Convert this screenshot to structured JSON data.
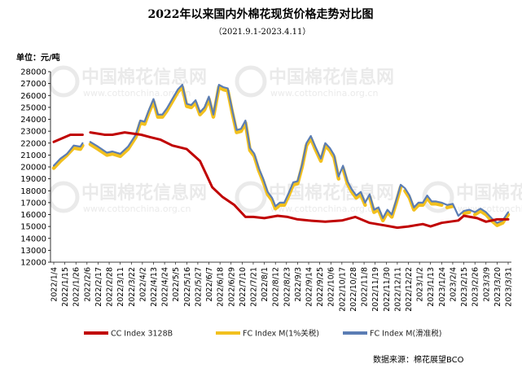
{
  "chart_data": {
    "type": "line",
    "title": "2022年以来国内外棉花现货价格走势对比图",
    "subtitle": "（2021.9.1-2023.4.11）",
    "ylabel": "单位：元/吨",
    "ylim": [
      12000,
      28000
    ],
    "ystep": 1000,
    "grid": false,
    "legend_position": "bottom",
    "source": "数据来源：棉花展望BCO",
    "watermark": {
      "cn": "中国棉花信息网",
      "en": "www.cottonchina.org.cn"
    },
    "x_labels": [
      "2022/1/4",
      "2022/1/15",
      "2022/1/26",
      "2022/2/6",
      "2022/2/17",
      "2022/2/28",
      "2022/3/11",
      "2022/3/22",
      "2022/4/2",
      "2022/4/13",
      "2022/4/24",
      "2022/5/5",
      "2022/5/16",
      "2022/5/27",
      "2022/6/7",
      "2022/6/18",
      "2022/6/29",
      "2022/7/10",
      "2022/7/21",
      "2022/8/1",
      "2022/8/12",
      "2022/8/23",
      "2022/9/3",
      "2022/9/14",
      "2022/9/25",
      "2022/10/6",
      "2022/10/17",
      "2022/10/28",
      "2022/11/8",
      "2022/11/19",
      "2022/11/30",
      "2022/12/11",
      "2022/12/22",
      "2023/1/2",
      "2023/1/13",
      "2023/1/24",
      "2023/2/4",
      "2023/2/15",
      "2023/2/26",
      "2023/3/9",
      "2023/3/20",
      "2023/3/31"
    ],
    "series": [
      {
        "name": "CC Index 3128B",
        "color": "#c00000",
        "x": [
          0,
          1.5,
          2.6,
          3.0,
          3.3,
          4.6,
          5.3,
          6.4,
          7.9,
          8.7,
          9.6,
          10.7,
          12.0,
          13.2,
          14.3,
          15.2,
          16.3,
          17.3,
          18.0,
          19.0,
          20.2,
          21.1,
          22.0,
          23.0,
          24.5,
          26.0,
          27.2,
          28.5,
          29.8,
          31.0,
          32.0,
          33.3,
          34.0,
          35.0,
          36.5,
          37.0,
          38.2,
          39.0,
          40.0,
          41.0
        ],
        "values": [
          22100,
          22700,
          22700,
          null,
          22900,
          22700,
          22700,
          22900,
          22700,
          22500,
          22300,
          21800,
          21500,
          20500,
          18300,
          17500,
          16800,
          15800,
          15800,
          15700,
          15900,
          15800,
          15600,
          15500,
          15400,
          15500,
          15800,
          15300,
          15100,
          14900,
          15000,
          15200,
          15000,
          15300,
          15500,
          15900,
          15700,
          15400,
          15600,
          15600
        ],
        "break_after_index": 2
      },
      {
        "name": "FC Index M(1%关税)",
        "color": "#f2c01e",
        "x": [
          0,
          0.6,
          1.2,
          1.8,
          2.4,
          2.6,
          null,
          3.3,
          4.0,
          4.8,
          5.3,
          6.0,
          6.7,
          7.4,
          7.8,
          8.2,
          8.6,
          9.0,
          9.4,
          9.8,
          10.2,
          10.7,
          11.2,
          11.6,
          12.0,
          12.4,
          12.8,
          13.2,
          13.6,
          14.0,
          14.4,
          14.9,
          15.3,
          15.7,
          16.1,
          16.5,
          16.9,
          17.3,
          17.7,
          18.1,
          18.5,
          18.9,
          19.3,
          19.7,
          20.0,
          20.4,
          20.8,
          21.2,
          21.6,
          22.0,
          22.4,
          22.8,
          23.2,
          23.6,
          24.1,
          24.5,
          24.9,
          25.3,
          25.7,
          26.1,
          26.5,
          26.9,
          27.3,
          27.7,
          28.1,
          28.5,
          28.9,
          29.3,
          29.7,
          30.1,
          30.5,
          30.9,
          31.3,
          31.7,
          32.1,
          32.5,
          32.9,
          33.3,
          33.7,
          34.1,
          34.5,
          35.0,
          35.5,
          36.0,
          36.5,
          37.0,
          37.5,
          38.0,
          38.5,
          39.0,
          39.5,
          40.0,
          40.5,
          41.0
        ],
        "values": [
          19900,
          20500,
          21000,
          21600,
          21500,
          21800,
          null,
          21900,
          21500,
          21000,
          21100,
          20900,
          21500,
          22500,
          23700,
          23600,
          24600,
          25500,
          24200,
          24200,
          24700,
          25500,
          26300,
          26700,
          25100,
          25000,
          25400,
          24400,
          24800,
          25700,
          24200,
          26700,
          26500,
          26400,
          24600,
          22900,
          23000,
          23700,
          21400,
          20900,
          19700,
          18800,
          17700,
          17200,
          16500,
          16800,
          16800,
          17600,
          18500,
          18600,
          20000,
          21800,
          22400,
          21500,
          20500,
          21800,
          21400,
          20800,
          19000,
          19900,
          18600,
          17900,
          17400,
          17700,
          16800,
          17500,
          16200,
          16400,
          15500,
          16200,
          15800,
          17000,
          18300,
          18000,
          17400,
          16400,
          16800,
          16800,
          17400,
          16900,
          16900,
          16800,
          16600,
          16700,
          15700,
          16100,
          16200,
          16000,
          16300,
          16000,
          15500,
          15100,
          15300,
          16000
        ],
        "gaps_at_x": [
          26.0,
          28.3,
          31.5,
          35.1,
          36.3,
          36.6,
          37.8
        ]
      },
      {
        "name": "FC Index M(滑准税)",
        "color": "#5b7db4",
        "x": [
          0,
          0.6,
          1.2,
          1.8,
          2.4,
          2.6,
          null,
          3.3,
          4.0,
          4.8,
          5.3,
          6.0,
          6.7,
          7.4,
          7.8,
          8.2,
          8.6,
          9.0,
          9.4,
          9.8,
          10.2,
          10.7,
          11.2,
          11.6,
          12.0,
          12.4,
          12.8,
          13.2,
          13.6,
          14.0,
          14.4,
          14.9,
          15.3,
          15.7,
          16.1,
          16.5,
          16.9,
          17.3,
          17.7,
          18.1,
          18.5,
          18.9,
          19.3,
          19.7,
          20.0,
          20.4,
          20.8,
          21.2,
          21.6,
          22.0,
          22.4,
          22.8,
          23.2,
          23.6,
          24.1,
          24.5,
          24.9,
          25.3,
          25.7,
          26.1,
          26.5,
          26.9,
          27.3,
          27.7,
          28.1,
          28.5,
          28.9,
          29.3,
          29.7,
          30.1,
          30.5,
          30.9,
          31.3,
          31.7,
          32.1,
          32.5,
          32.9,
          33.3,
          33.7,
          34.1,
          34.5,
          35.0,
          35.5,
          36.0,
          36.5,
          37.0,
          37.5,
          38.0,
          38.5,
          39.0,
          39.5,
          40.0,
          40.5,
          41.0
        ],
        "values": [
          20100,
          20700,
          21100,
          21800,
          21700,
          22000,
          null,
          22100,
          21700,
          21200,
          21300,
          21100,
          21700,
          22700,
          23900,
          23800,
          24800,
          25700,
          24400,
          24400,
          24900,
          25700,
          26500,
          26900,
          25300,
          25200,
          25600,
          24600,
          25000,
          25900,
          24400,
          26900,
          26700,
          26600,
          24800,
          23100,
          23200,
          23900,
          21600,
          21100,
          19900,
          19000,
          17900,
          17400,
          16700,
          17000,
          17000,
          17800,
          18700,
          18800,
          20200,
          22000,
          22600,
          21700,
          20700,
          22000,
          21600,
          21000,
          19200,
          20100,
          18800,
          18100,
          17600,
          17900,
          17000,
          17700,
          16400,
          16600,
          15700,
          16400,
          16000,
          17200,
          18500,
          18200,
          17600,
          16600,
          17000,
          17000,
          17600,
          17100,
          17100,
          17000,
          16800,
          16900,
          15900,
          16300,
          16400,
          16200,
          16500,
          16200,
          15700,
          15300,
          15500,
          16200
        ]
      }
    ]
  }
}
